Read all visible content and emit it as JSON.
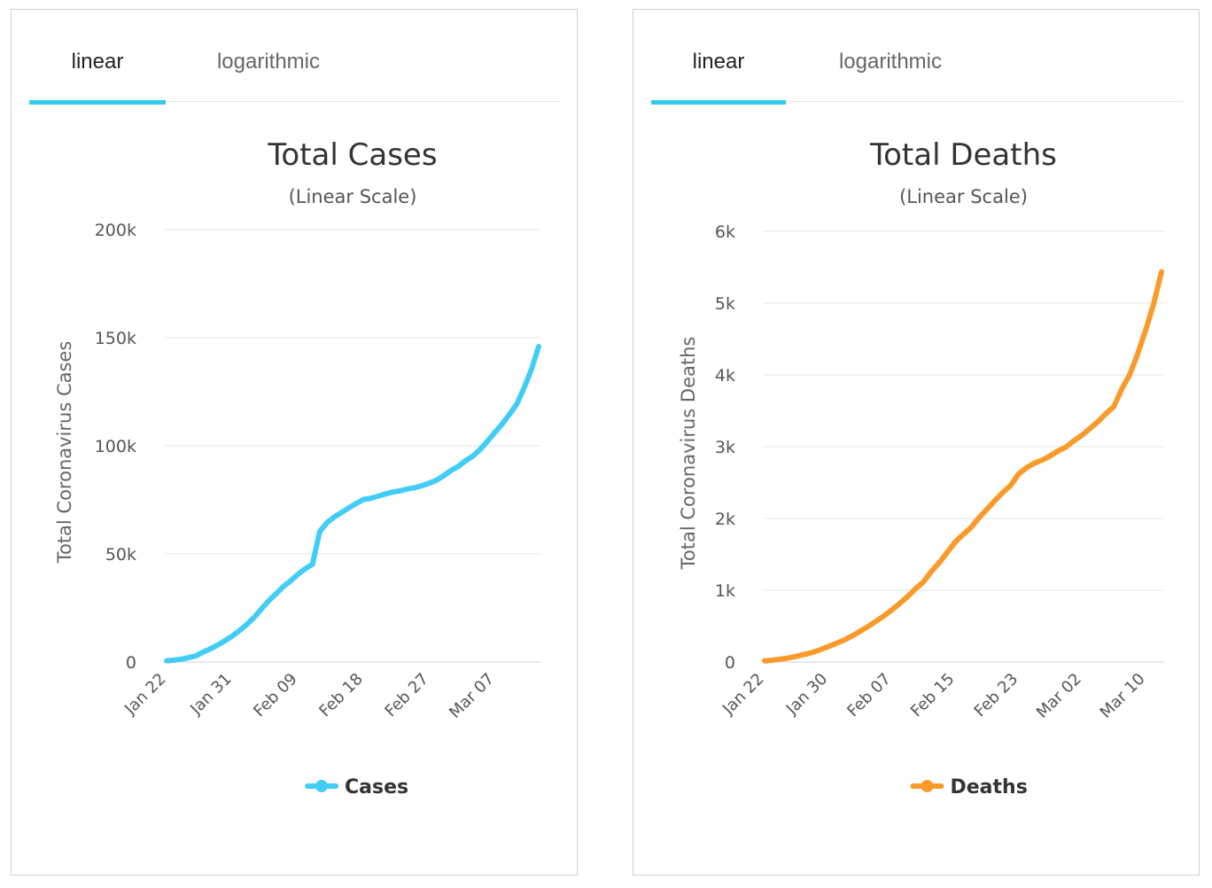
{
  "panels": [
    {
      "tabs": [
        {
          "label": "linear",
          "active": true
        },
        {
          "label": "logarithmic",
          "active": false
        }
      ],
      "color": "#41cdf5",
      "chart_data": {
        "type": "line",
        "title": "Total Cases",
        "subtitle": "(Linear Scale)",
        "xlabel": "",
        "ylabel": "Total Coronavirus Cases",
        "ylim": [
          0,
          200000
        ],
        "yticks": [
          0,
          50000,
          100000,
          150000,
          200000
        ],
        "ytick_labels": [
          "0",
          "50k",
          "100k",
          "150k",
          "200k"
        ],
        "xtick_labels": [
          "Jan 22",
          "Jan 31",
          "Feb 09",
          "Feb 18",
          "Feb 27",
          "Mar 07"
        ],
        "xtick_index": [
          0,
          9,
          18,
          27,
          36,
          45
        ],
        "legend": "Cases",
        "legend_position": "bottom-center",
        "grid": true,
        "series": [
          {
            "name": "Cases",
            "values": [
              580,
              845,
              1320,
              2010,
              2800,
              4580,
              6060,
              7810,
              9820,
              11950,
              14550,
              17390,
              20630,
              24550,
              28280,
              31500,
              34880,
              37550,
              40550,
              43100,
              45200,
              60350,
              64500,
              67100,
              69200,
              71300,
              73300,
              75200,
              75700,
              76700,
              77700,
              78600,
              79200,
              80000,
              80600,
              81500,
              82700,
              84100,
              86200,
              88600,
              90500,
              93100,
              95300,
              98300,
              102200,
              106200,
              110100,
              114500,
              119300,
              126700,
              135300,
              145900
            ]
          }
        ]
      }
    },
    {
      "tabs": [
        {
          "label": "linear",
          "active": true
        },
        {
          "label": "logarithmic",
          "active": false
        }
      ],
      "color": "#f99a2a",
      "chart_data": {
        "type": "line",
        "title": "Total Deaths",
        "subtitle": "(Linear Scale)",
        "xlabel": "",
        "ylabel": "Total Coronavirus Deaths",
        "ylim": [
          0,
          6000
        ],
        "yticks": [
          0,
          1000,
          2000,
          3000,
          4000,
          5000,
          6000
        ],
        "ytick_labels": [
          "0",
          "1k",
          "2k",
          "3k",
          "4k",
          "5k",
          "6k"
        ],
        "xtick_labels": [
          "Jan 22",
          "Jan 30",
          "Feb 07",
          "Feb 15",
          "Feb 23",
          "Mar 02",
          "Mar 10"
        ],
        "xtick_index": [
          0,
          8,
          16,
          24,
          32,
          40,
          48
        ],
        "legend": "Deaths",
        "legend_position": "bottom-center",
        "grid": true,
        "series": [
          {
            "name": "Deaths",
            "values": [
              17,
              25,
              41,
              56,
              80,
              106,
              132,
              170,
              213,
              259,
              304,
              362,
              426,
              492,
              565,
              638,
              724,
              813,
              910,
              1018,
              1115,
              1261,
              1383,
              1526,
              1669,
              1775,
              1873,
              2009,
              2126,
              2247,
              2360,
              2460,
              2618,
              2707,
              2770,
              2814,
              2873,
              2942,
              2996,
              3085,
              3160,
              3254,
              3348,
              3460,
              3558,
              3803,
              4005,
              4292,
              4623,
              4983,
              5436
            ]
          }
        ]
      }
    }
  ]
}
